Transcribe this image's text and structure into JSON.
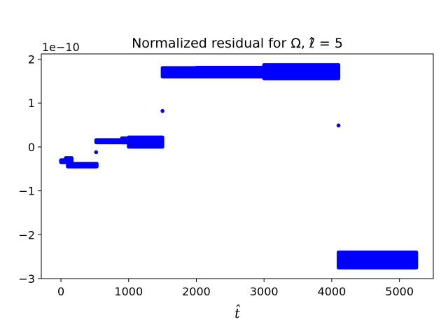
{
  "chart_data": {
    "type": "scatter",
    "title": "Normalized residual for Ω, ℓ̂ = 5",
    "xlabel": "t̂",
    "ylabel": "",
    "y_offset_text": "1e−10",
    "xlim": [
      -290,
      5500
    ],
    "ylim": [
      -3.0,
      2.12
    ],
    "xticks": [
      0,
      1000,
      2000,
      3000,
      4000,
      5000
    ],
    "xtick_labels": [
      "0",
      "1000",
      "2000",
      "3000",
      "4000",
      "5000"
    ],
    "yticks": [
      -3,
      -2,
      -1,
      0,
      1,
      2
    ],
    "ytick_labels": [
      "−3",
      "−2",
      "−1",
      "0",
      "1",
      "2"
    ],
    "grid": false,
    "marker_color": "#0000ff",
    "series": [
      {
        "points": [
          [
            0,
            -0.32
          ],
          [
            40,
            -0.33
          ],
          [
            80,
            -0.3
          ],
          [
            120,
            -0.28
          ],
          [
            160,
            -0.4
          ],
          [
            250,
            -0.42
          ],
          [
            500,
            -0.42
          ],
          [
            520,
            -0.12
          ],
          [
            1500,
            0.82
          ],
          [
            4100,
            0.49
          ]
        ],
        "bands": [
          {
            "x": [
              0,
              70
            ],
            "y": [
              -0.35,
              -0.3
            ]
          },
          {
            "x": [
              70,
              160
            ],
            "y": [
              -0.34,
              -0.25
            ]
          },
          {
            "x": [
              100,
              530
            ],
            "y": [
              -0.45,
              -0.38
            ]
          },
          {
            "x": [
              520,
              1000
            ],
            "y": [
              0.1,
              0.16
            ]
          },
          {
            "x": [
              900,
              1000
            ],
            "y": [
              0.1,
              0.2
            ]
          },
          {
            "x": [
              1000,
              1500
            ],
            "y": [
              0.0,
              0.22
            ]
          },
          {
            "x": [
              1500,
              2000
            ],
            "y": [
              1.6,
              1.8
            ]
          },
          {
            "x": [
              2000,
              3000
            ],
            "y": [
              1.6,
              1.81
            ]
          },
          {
            "x": [
              3000,
              4100
            ],
            "y": [
              1.56,
              1.87
            ]
          },
          {
            "x": [
              4100,
              5250
            ],
            "y": [
              -2.75,
              -2.4
            ]
          }
        ]
      }
    ]
  }
}
